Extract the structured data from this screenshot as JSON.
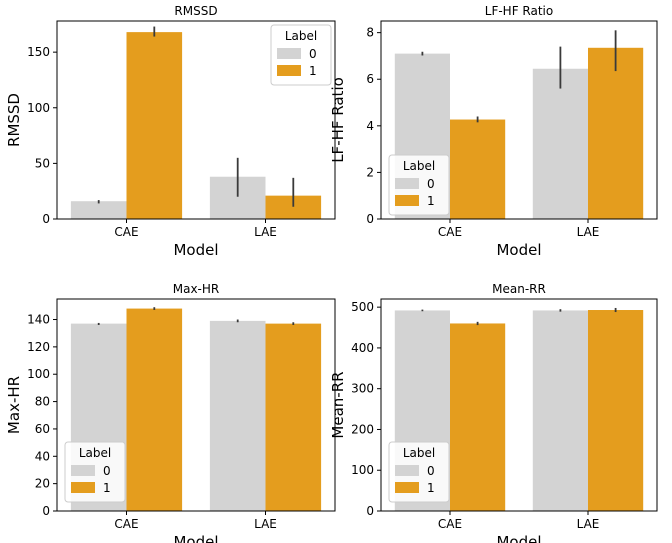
{
  "colors": {
    "label0": "#d3d3d3",
    "label1": "#e49d1e",
    "errorbar": "#3a3a3a",
    "axis": "#000000",
    "legend_border": "#cccccc"
  },
  "chart_data": [
    {
      "type": "bar",
      "title": "RMSSD",
      "xlabel": "Model",
      "ylabel": "RMSSD",
      "categories": [
        "CAE",
        "LAE"
      ],
      "ylim": [
        0,
        178
      ],
      "yticks": [
        0,
        50,
        100,
        150
      ],
      "series": [
        {
          "name": "0",
          "values": [
            16,
            38
          ],
          "err_low": [
            14,
            20
          ],
          "err_high": [
            17,
            55
          ]
        },
        {
          "name": "1",
          "values": [
            168,
            21
          ],
          "err_low": [
            164,
            11
          ],
          "err_high": [
            173,
            37
          ]
        }
      ],
      "legend": {
        "title": "Label",
        "position": "upper right"
      }
    },
    {
      "type": "bar",
      "title": "LF-HF Ratio",
      "xlabel": "Model",
      "ylabel": "LF-HF Ratio",
      "categories": [
        "CAE",
        "LAE"
      ],
      "ylim": [
        0,
        8.5
      ],
      "yticks": [
        0,
        2,
        4,
        6,
        8
      ],
      "series": [
        {
          "name": "0",
          "values": [
            7.1,
            6.45
          ],
          "err_low": [
            7.02,
            5.6
          ],
          "err_high": [
            7.18,
            7.4
          ]
        },
        {
          "name": "1",
          "values": [
            4.27,
            7.35
          ],
          "err_low": [
            4.15,
            6.35
          ],
          "err_high": [
            4.4,
            8.1
          ]
        }
      ],
      "legend": {
        "title": "Label",
        "position": "lower left"
      }
    },
    {
      "type": "bar",
      "title": "Max-HR",
      "xlabel": "Model",
      "ylabel": "Max-HR",
      "categories": [
        "CAE",
        "LAE"
      ],
      "ylim": [
        0,
        155
      ],
      "yticks": [
        0,
        20,
        40,
        60,
        80,
        100,
        120,
        140
      ],
      "series": [
        {
          "name": "0",
          "values": [
            137,
            139
          ],
          "err_low": [
            136,
            138
          ],
          "err_high": [
            137.5,
            140
          ]
        },
        {
          "name": "1",
          "values": [
            148,
            137
          ],
          "err_low": [
            147,
            136
          ],
          "err_high": [
            149,
            138
          ]
        }
      ],
      "legend": {
        "title": "Label",
        "position": "lower left"
      }
    },
    {
      "type": "bar",
      "title": "Mean-RR",
      "xlabel": "Model",
      "ylabel": "Mean-RR",
      "categories": [
        "CAE",
        "LAE"
      ],
      "ylim": [
        0,
        520
      ],
      "yticks": [
        0,
        100,
        200,
        300,
        400,
        500
      ],
      "series": [
        {
          "name": "0",
          "values": [
            492,
            492
          ],
          "err_low": [
            490,
            489
          ],
          "err_high": [
            494,
            495
          ]
        },
        {
          "name": "1",
          "values": [
            460,
            493
          ],
          "err_low": [
            456,
            488
          ],
          "err_high": [
            464,
            498
          ]
        }
      ],
      "legend": {
        "title": "Label",
        "position": "lower left"
      }
    }
  ]
}
